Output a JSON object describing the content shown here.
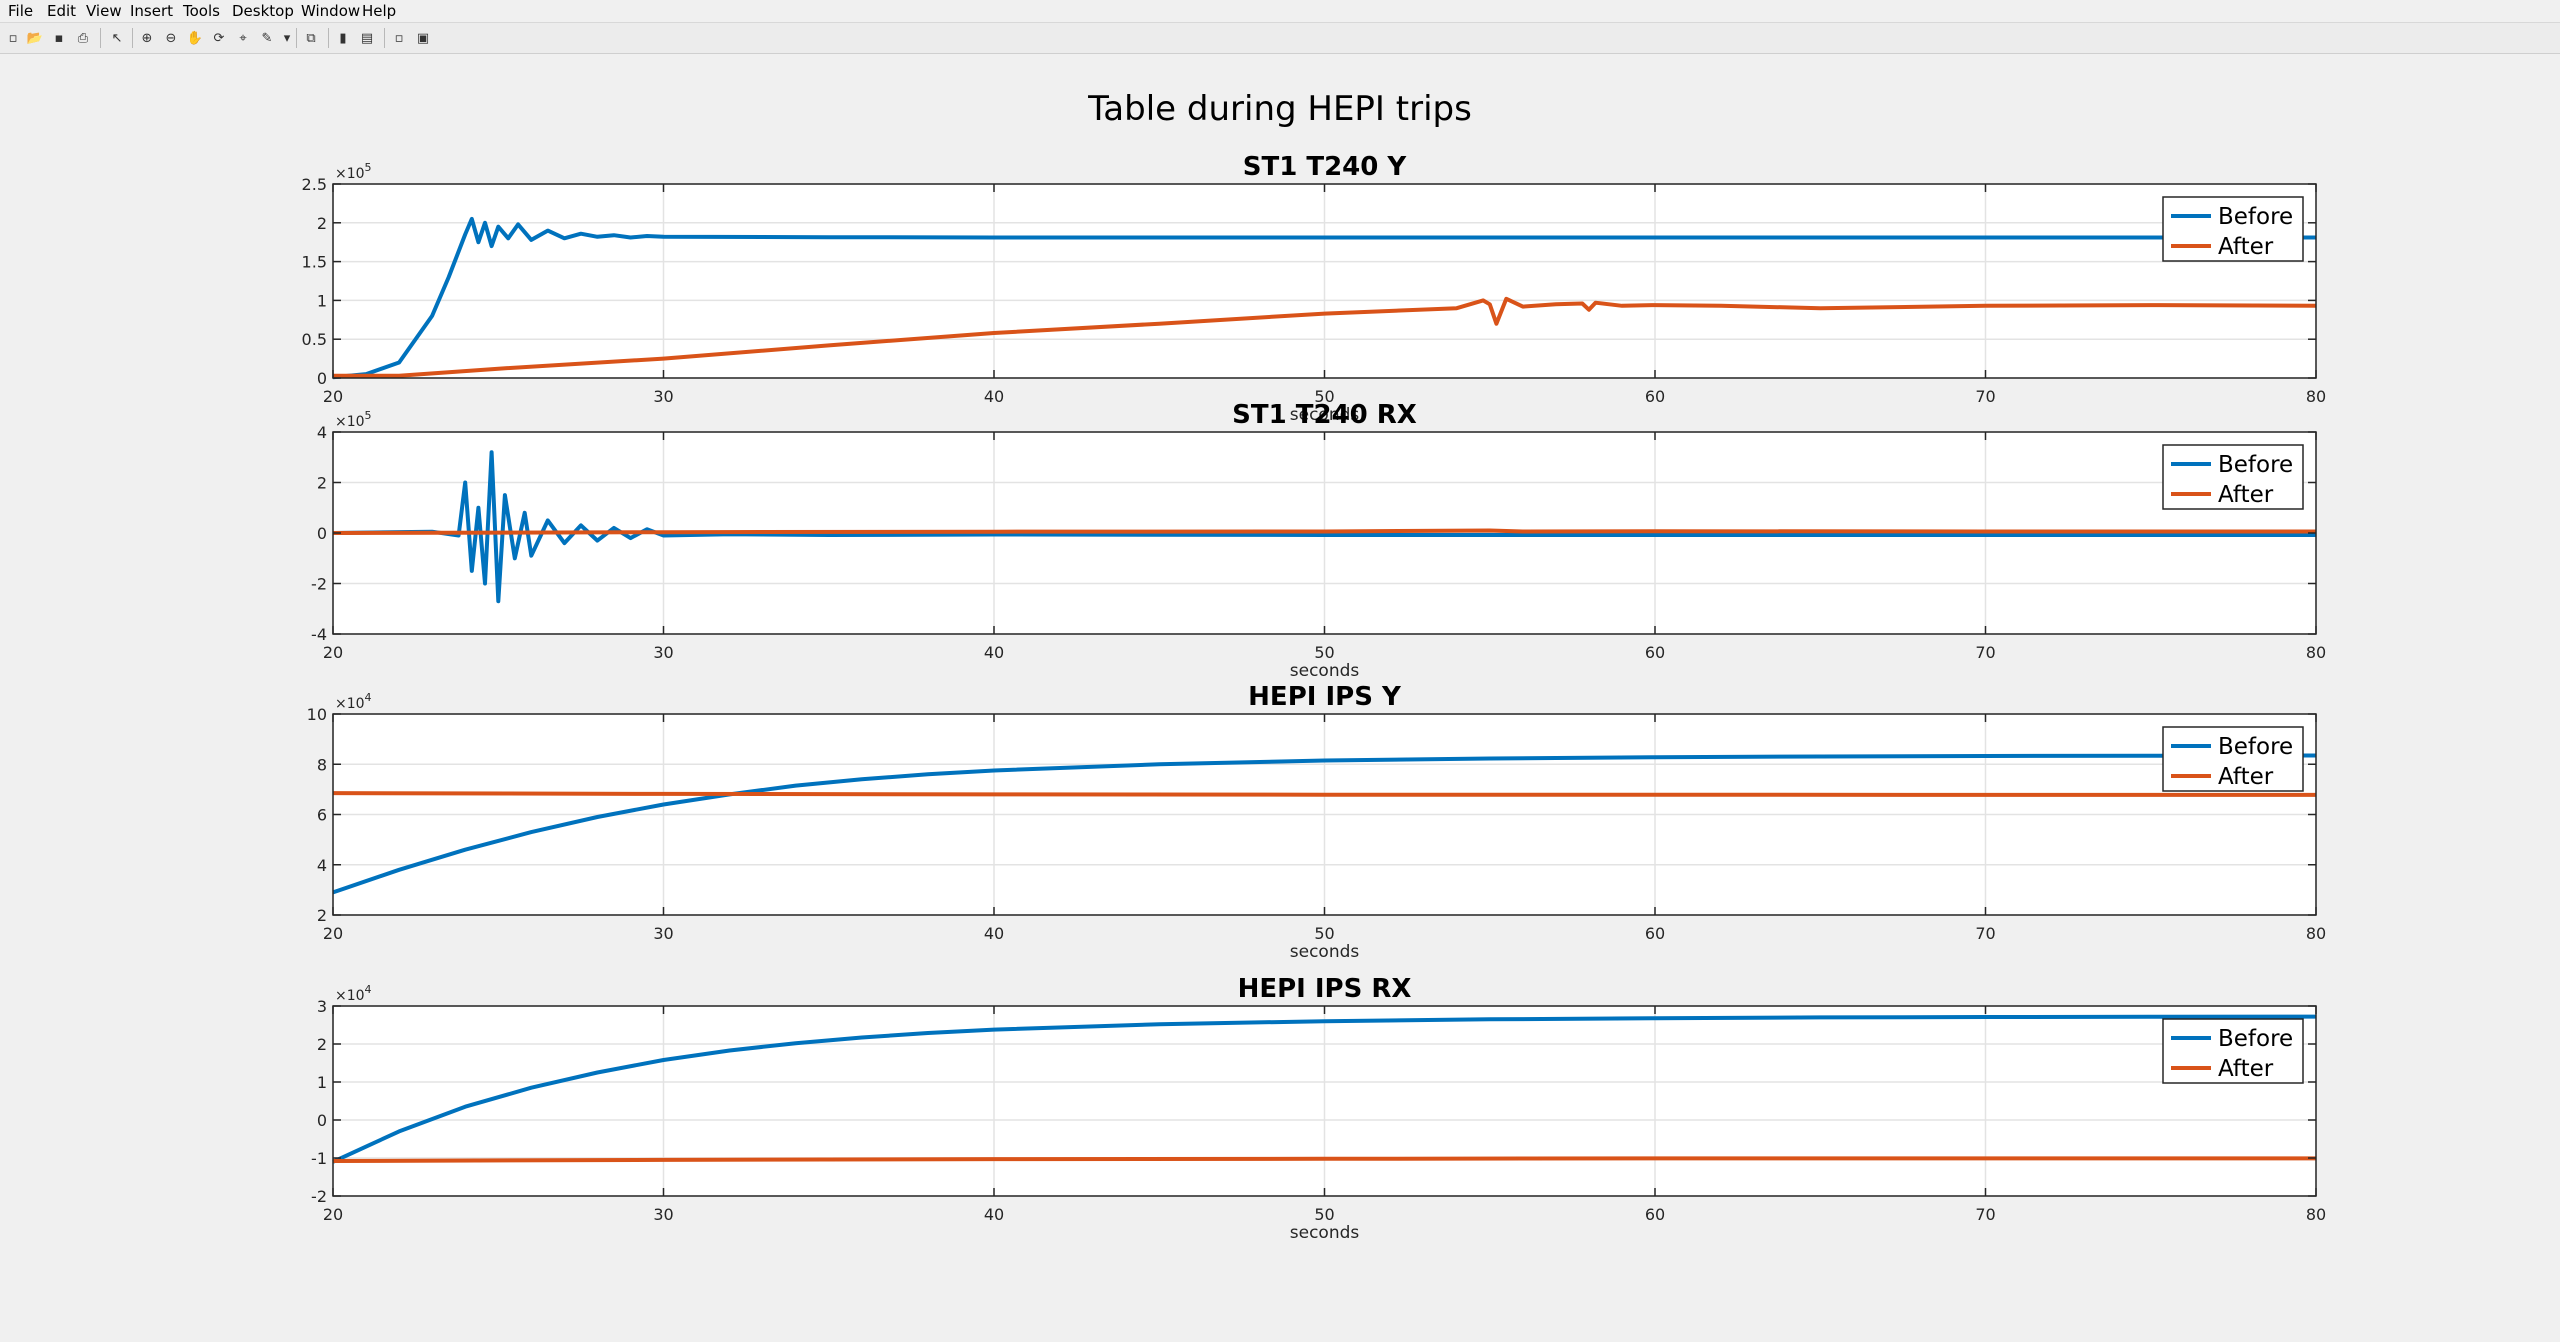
{
  "menu": {
    "items": [
      "File",
      "Edit",
      "View",
      "Insert",
      "Tools",
      "Desktop",
      "Window",
      "Help"
    ]
  },
  "toolbar": {
    "icons": [
      "new-figure-icon",
      "open-file-icon",
      "save-icon",
      "print-icon",
      "edit-plot-icon",
      "zoom-in-icon",
      "zoom-out-icon",
      "pan-icon",
      "rotate-icon",
      "data-cursor-icon",
      "brush-icon",
      "link-plot-icon",
      "colorbar-icon",
      "legend-icon",
      "hide-plot-tools-icon",
      "show-plot-tools-icon"
    ]
  },
  "figure": {
    "title": "Table during HEPI trips"
  },
  "colors": {
    "before": "#0072bd",
    "after": "#d95319",
    "background": "#f0f0f0"
  },
  "chart_data": [
    {
      "type": "line",
      "title": "ST1 T240 Y",
      "xlabel": "seconds",
      "ylabel": "",
      "xlim": [
        20,
        80
      ],
      "ylim": [
        0,
        250000
      ],
      "xticks": [
        20,
        30,
        40,
        50,
        60,
        70,
        80
      ],
      "yticks": [
        0,
        0.5,
        1,
        1.5,
        2,
        2.5
      ],
      "exponent": "5",
      "legend": "top-right",
      "grid": true,
      "series": [
        {
          "name": "Before",
          "x": [
            20,
            21,
            22,
            23,
            23.5,
            24,
            24.2,
            24.4,
            24.6,
            24.8,
            25,
            25.3,
            25.6,
            26,
            26.5,
            27,
            27.5,
            28,
            28.5,
            29,
            29.5,
            30,
            35,
            40,
            50,
            60,
            70,
            80
          ],
          "y": [
            1000,
            5000,
            20000,
            80000,
            130000,
            185000,
            205000,
            175000,
            200000,
            170000,
            195000,
            180000,
            198000,
            178000,
            190000,
            180000,
            186000,
            182000,
            184000,
            181000,
            183000,
            182000,
            181500,
            181000,
            181000,
            181000,
            181000,
            181000
          ]
        },
        {
          "name": "After",
          "x": [
            20,
            22,
            25,
            30,
            35,
            40,
            45,
            50,
            54,
            54.8,
            55,
            55.2,
            55.5,
            56,
            57,
            57.8,
            58,
            58.2,
            59,
            60,
            62,
            65,
            70,
            75,
            80
          ],
          "y": [
            3000,
            3000,
            12000,
            25000,
            42000,
            58000,
            70000,
            83000,
            90000,
            100000,
            95000,
            70000,
            102000,
            92000,
            95000,
            96000,
            88000,
            97000,
            93000,
            94000,
            93000,
            90000,
            93000,
            94000,
            93000
          ]
        }
      ]
    },
    {
      "type": "line",
      "title": "ST1 T240 RX",
      "xlabel": "seconds",
      "ylabel": "",
      "xlim": [
        20,
        80
      ],
      "ylim": [
        -400000,
        400000
      ],
      "xticks": [
        20,
        30,
        40,
        50,
        60,
        70,
        80
      ],
      "yticks": [
        -4,
        -2,
        0,
        2,
        4
      ],
      "exponent": "5",
      "legend": "top-right",
      "grid": true,
      "series": [
        {
          "name": "Before",
          "x": [
            20,
            23,
            23.8,
            24,
            24.2,
            24.4,
            24.6,
            24.8,
            25,
            25.2,
            25.5,
            25.8,
            26,
            26.5,
            27,
            27.5,
            28,
            28.5,
            29,
            29.5,
            30,
            32,
            35,
            40,
            50,
            60,
            70,
            80
          ],
          "y": [
            0,
            5000,
            -10000,
            200000,
            -150000,
            100000,
            -200000,
            320000,
            -270000,
            150000,
            -100000,
            80000,
            -90000,
            50000,
            -40000,
            30000,
            -30000,
            20000,
            -20000,
            15000,
            -10000,
            -5000,
            -8000,
            -6000,
            -8000,
            -8000,
            -8000,
            -8000
          ]
        },
        {
          "name": "After",
          "x": [
            20,
            30,
            40,
            50,
            55,
            56,
            60,
            70,
            80
          ],
          "y": [
            0,
            3000,
            5000,
            6000,
            10000,
            6000,
            7000,
            6000,
            6000
          ]
        }
      ]
    },
    {
      "type": "line",
      "title": "HEPI IPS Y",
      "xlabel": "seconds",
      "ylabel": "",
      "xlim": [
        20,
        80
      ],
      "ylim": [
        20000,
        100000
      ],
      "xticks": [
        20,
        30,
        40,
        50,
        60,
        70,
        80
      ],
      "yticks": [
        2,
        4,
        6,
        8,
        10
      ],
      "exponent": "4",
      "legend": "top-right",
      "grid": true,
      "series": [
        {
          "name": "Before",
          "x": [
            20,
            22,
            24,
            26,
            28,
            30,
            32,
            34,
            36,
            38,
            40,
            45,
            50,
            55,
            60,
            65,
            70,
            75,
            80
          ],
          "y": [
            29000,
            38000,
            46000,
            53000,
            59000,
            64000,
            68000,
            71500,
            74000,
            76000,
            77500,
            80000,
            81500,
            82300,
            82800,
            83100,
            83300,
            83400,
            83500
          ]
        },
        {
          "name": "After",
          "x": [
            20,
            30,
            40,
            50,
            60,
            70,
            80
          ],
          "y": [
            68500,
            68200,
            68000,
            67900,
            67900,
            67800,
            67800
          ]
        }
      ]
    },
    {
      "type": "line",
      "title": "HEPI IPS RX",
      "xlabel": "seconds",
      "ylabel": "",
      "xlim": [
        20,
        80
      ],
      "ylim": [
        -20000,
        30000
      ],
      "xticks": [
        20,
        30,
        40,
        50,
        60,
        70,
        80
      ],
      "yticks": [
        -2,
        -1,
        0,
        1,
        2,
        3
      ],
      "exponent": "4",
      "legend": "top-right",
      "grid": true,
      "series": [
        {
          "name": "Before",
          "x": [
            20,
            22,
            24,
            26,
            28,
            30,
            32,
            34,
            36,
            38,
            40,
            45,
            50,
            55,
            60,
            65,
            70,
            75,
            80
          ],
          "y": [
            -11000,
            -3000,
            3500,
            8500,
            12500,
            15800,
            18300,
            20200,
            21700,
            22900,
            23800,
            25200,
            26000,
            26500,
            26800,
            27000,
            27100,
            27150,
            27200
          ]
        },
        {
          "name": "After",
          "x": [
            20,
            30,
            40,
            50,
            60,
            70,
            80
          ],
          "y": [
            -10800,
            -10500,
            -10300,
            -10200,
            -10100,
            -10100,
            -10100
          ]
        }
      ]
    }
  ]
}
